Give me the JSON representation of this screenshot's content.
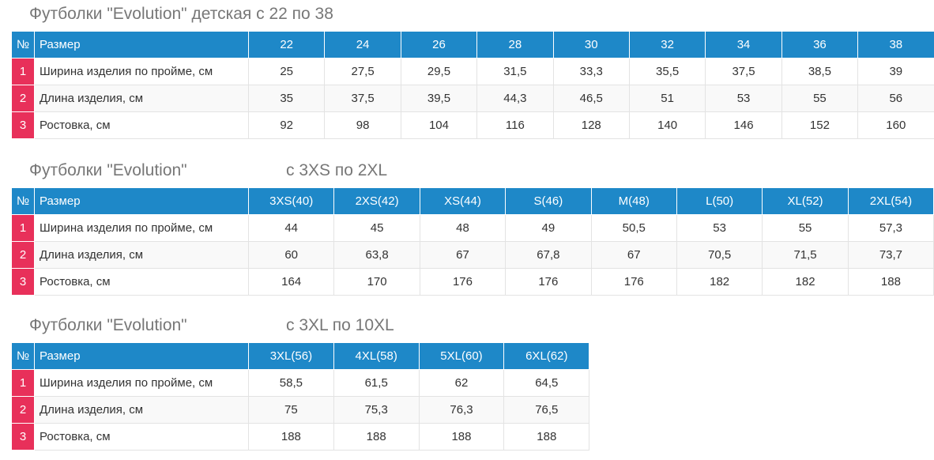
{
  "tables": [
    {
      "title": [
        "Футболки \"Evolution\" детская с 22 по 38"
      ],
      "header": [
        "№",
        "Размер",
        "22",
        "24",
        "26",
        "28",
        "30",
        "32",
        "34",
        "36",
        "38"
      ],
      "rows": [
        [
          "1",
          "Ширина изделия по пройме, см",
          "25",
          "27,5",
          "29,5",
          "31,5",
          "33,3",
          "35,5",
          "37,5",
          "38,5",
          "39"
        ],
        [
          "2",
          "Длина изделия, см",
          "35",
          "37,5",
          "39,5",
          "44,3",
          "46,5",
          "51",
          "53",
          "55",
          "56"
        ],
        [
          "3",
          "Ростовка, см",
          "92",
          "98",
          "104",
          "116",
          "128",
          "140",
          "146",
          "152",
          "160"
        ]
      ]
    },
    {
      "title": [
        "Футболки \"Evolution\"",
        "с 3XS по 2XL"
      ],
      "header": [
        "№",
        "Размер",
        "3XS(40)",
        "2XS(42)",
        "XS(44)",
        "S(46)",
        "M(48)",
        "L(50)",
        "XL(52)",
        "2XL(54)"
      ],
      "rows": [
        [
          "1",
          "Ширина изделия по пройме, см",
          "44",
          "45",
          "48",
          "49",
          "50,5",
          "53",
          "55",
          "57,3"
        ],
        [
          "2",
          "Длина изделия, см",
          "60",
          "63,8",
          "67",
          "67,8",
          "67",
          "70,5",
          "71,5",
          "73,7"
        ],
        [
          "3",
          "Ростовка, см",
          "164",
          "170",
          "176",
          "176",
          "176",
          "182",
          "182",
          "188"
        ]
      ]
    },
    {
      "title": [
        "Футболки \"Evolution\"",
        "с 3XL по 10XL"
      ],
      "header": [
        "№",
        "Размер",
        "3XL(56)",
        "4XL(58)",
        "5XL(60)",
        "6XL(62)"
      ],
      "rows": [
        [
          "1",
          "Ширина изделия по пройме, см",
          "58,5",
          "61,5",
          "62",
          "64,5"
        ],
        [
          "2",
          "Длина изделия, см",
          "75",
          "75,3",
          "76,3",
          "76,5"
        ],
        [
          "3",
          "Ростовка, см",
          "188",
          "188",
          "188",
          "188"
        ]
      ]
    }
  ]
}
